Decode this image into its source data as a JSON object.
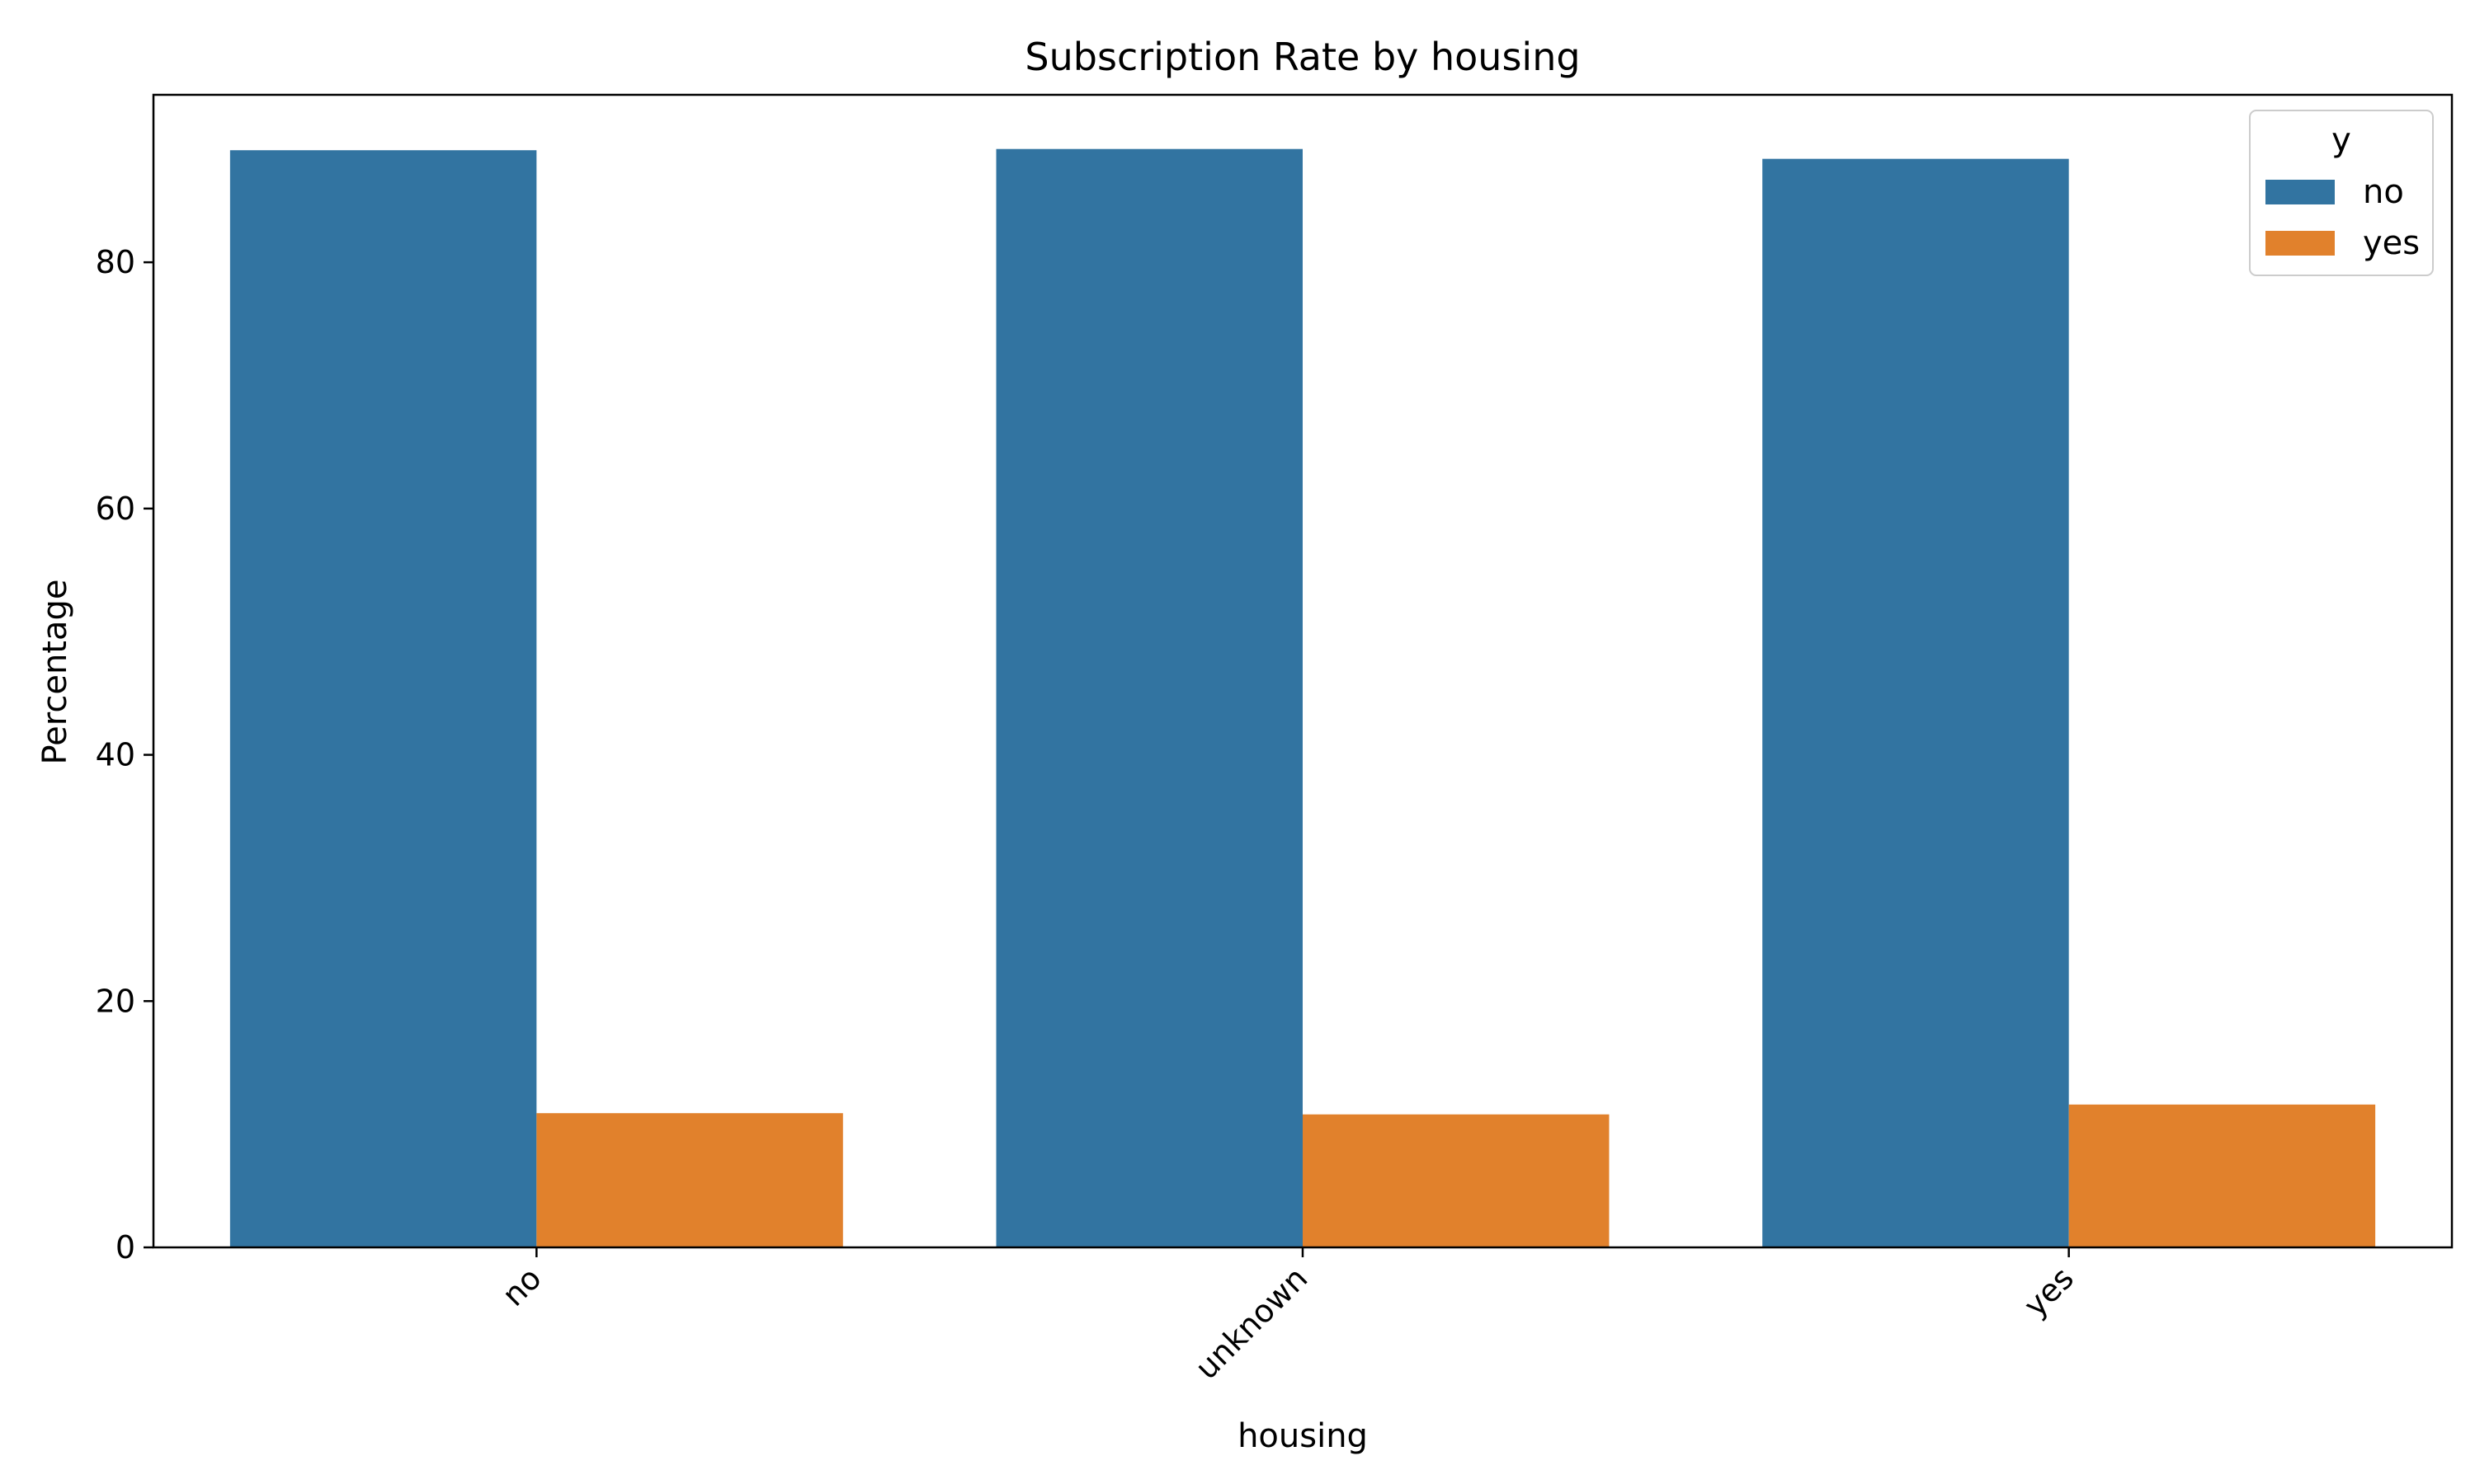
{
  "chart_data": {
    "type": "bar",
    "title": "Subscription Rate by housing",
    "xlabel": "housing",
    "ylabel": "Percentage",
    "categories": [
      "no",
      "unknown",
      "yes"
    ],
    "series": [
      {
        "name": "no",
        "color": "#3274a1",
        "values": [
          89.1,
          89.2,
          88.4
        ]
      },
      {
        "name": "yes",
        "color": "#e1812c",
        "values": [
          10.9,
          10.8,
          11.6
        ]
      }
    ],
    "ylim": [
      0,
      93.6
    ],
    "yticks": [
      0,
      20,
      40,
      60,
      80
    ],
    "legend": {
      "title": "y",
      "position": "top-right"
    },
    "grid": false
  }
}
